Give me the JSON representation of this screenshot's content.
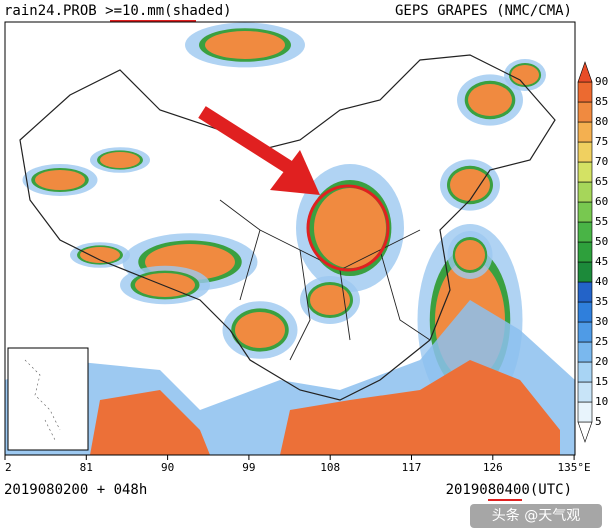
{
  "header": {
    "left": "rain24.PROB >=10.mm(shaded)",
    "right": "GEPS GRAPES (NMC/CMA)"
  },
  "x_axis": {
    "labels": [
      "2",
      "81",
      "90",
      "99",
      "108",
      "117",
      "126",
      "135°E"
    ]
  },
  "colorbar": {
    "labels": [
      5,
      10,
      15,
      20,
      25,
      30,
      35,
      40,
      45,
      50,
      55,
      60,
      65,
      70,
      75,
      80,
      85,
      90
    ],
    "colors": [
      "#ffffff",
      "#e8f4fc",
      "#c8e4f8",
      "#a8d4f4",
      "#7ab8ee",
      "#4f9be6",
      "#2f7fdc",
      "#2363c8",
      "#1c8a3a",
      "#2ea03c",
      "#49b446",
      "#78c850",
      "#a6d65a",
      "#d4e264",
      "#f0d060",
      "#f4b050",
      "#f08a40",
      "#ec6a30",
      "#e84c28"
    ]
  },
  "footer": {
    "left": "2019080200 + 048h",
    "right": "2019080400(UTC)"
  },
  "watermark": "头条 @天气观"
}
